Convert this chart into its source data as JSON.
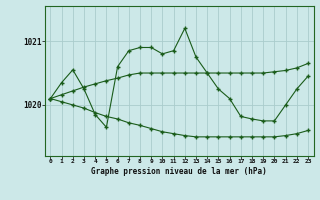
{
  "background_color": "#cce8e8",
  "grid_color": "#aacccc",
  "line_color": "#1a5c1a",
  "title": "Graphe pression niveau de la mer (hPa)",
  "ylim": [
    1019.2,
    1021.55
  ],
  "yticks": [
    1020,
    1021
  ],
  "xlim": [
    -0.5,
    23.5
  ],
  "figsize": [
    3.2,
    2.0
  ],
  "dpi": 100,
  "series1": [
    1020.1,
    1020.35,
    1020.55,
    1020.25,
    1019.85,
    1019.65,
    1020.6,
    1020.85,
    1020.9,
    1020.9,
    1020.8,
    1020.85,
    1021.2,
    1020.75,
    1020.5,
    1020.25,
    1020.1,
    1019.82,
    1019.78,
    1019.75,
    1019.75,
    1020.0,
    1020.25,
    1020.45
  ],
  "series2": [
    1020.1,
    1020.05,
    1020.0,
    1019.95,
    1019.88,
    1019.82,
    1019.78,
    1019.72,
    1019.68,
    1019.63,
    1019.58,
    1019.55,
    1019.52,
    1019.5,
    1019.5,
    1019.5,
    1019.5,
    1019.5,
    1019.5,
    1019.5,
    1019.5,
    1019.52,
    1019.55,
    1019.6
  ],
  "series3": [
    1020.1,
    1020.16,
    1020.22,
    1020.28,
    1020.33,
    1020.38,
    1020.42,
    1020.47,
    1020.5,
    1020.5,
    1020.5,
    1020.5,
    1020.5,
    1020.5,
    1020.5,
    1020.5,
    1020.5,
    1020.5,
    1020.5,
    1020.5,
    1020.52,
    1020.54,
    1020.58,
    1020.65
  ]
}
